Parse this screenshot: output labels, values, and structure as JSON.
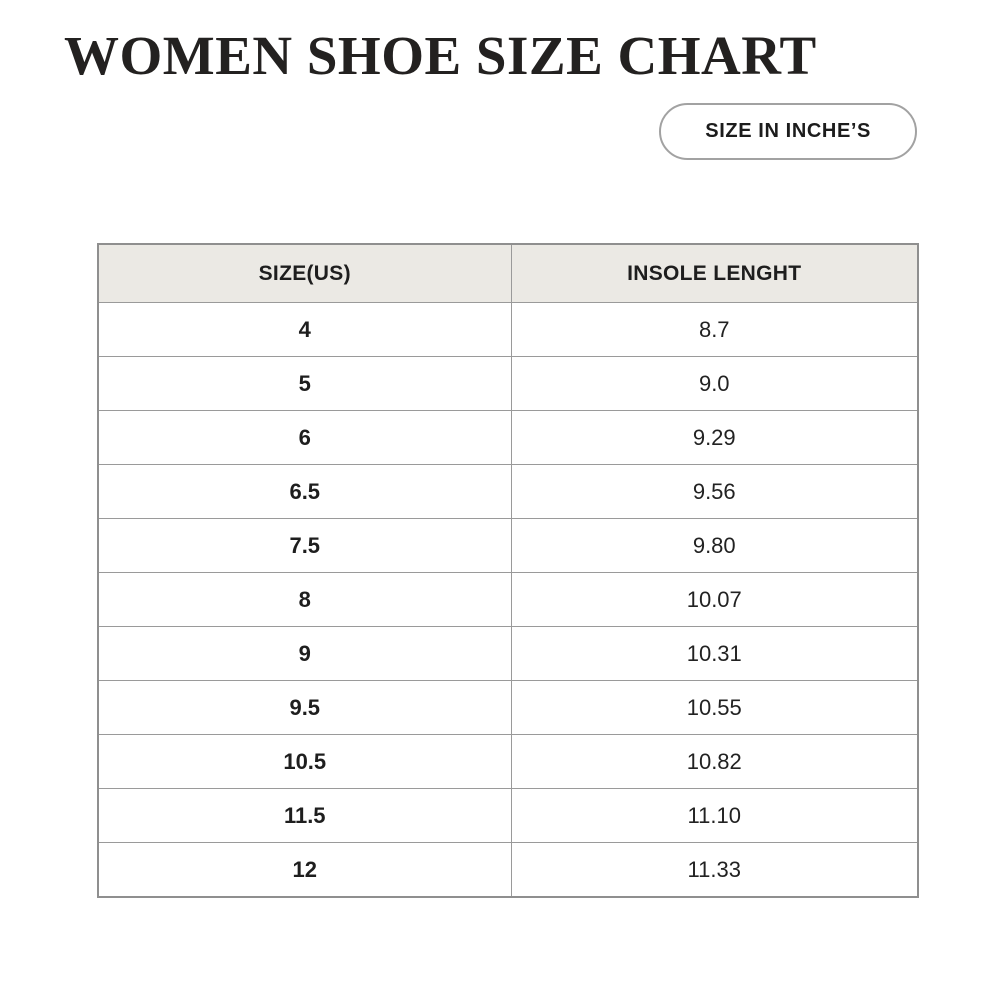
{
  "page": {
    "title": "WOMEN SHOE SIZE CHART",
    "unit_button_label": "SIZE IN INCHE’S"
  },
  "table": {
    "headers": [
      "SIZE(US)",
      "INSOLE LENGHT"
    ],
    "rows": [
      [
        "4",
        "8.7"
      ],
      [
        "5",
        "9.0"
      ],
      [
        "6",
        "9.29"
      ],
      [
        "6.5",
        "9.56"
      ],
      [
        "7.5",
        "9.80"
      ],
      [
        "8",
        "10.07"
      ],
      [
        "9",
        "10.31"
      ],
      [
        "9.5",
        "10.55"
      ],
      [
        "10.5",
        "10.82"
      ],
      [
        "11.5",
        "11.10"
      ],
      [
        "12",
        "11.33"
      ]
    ]
  },
  "chart_data": {
    "type": "table",
    "title": "WOMEN SHOE SIZE CHART",
    "unit_label": "SIZE IN INCHE’S",
    "columns": [
      "SIZE(US)",
      "INSOLE LENGHT"
    ],
    "sizes_us": [
      4,
      5,
      6,
      6.5,
      7.5,
      8,
      9,
      9.5,
      10.5,
      11.5,
      12
    ],
    "insole_length_inches": [
      8.7,
      9.0,
      9.29,
      9.56,
      9.8,
      10.07,
      10.31,
      10.55,
      10.82,
      11.1,
      11.33
    ]
  },
  "colors": {
    "background": "#ffffff",
    "header_bg": "#ebe9e4",
    "border": "#8f8f8f",
    "text": "#1e1e1e",
    "title_text": "#232120"
  }
}
